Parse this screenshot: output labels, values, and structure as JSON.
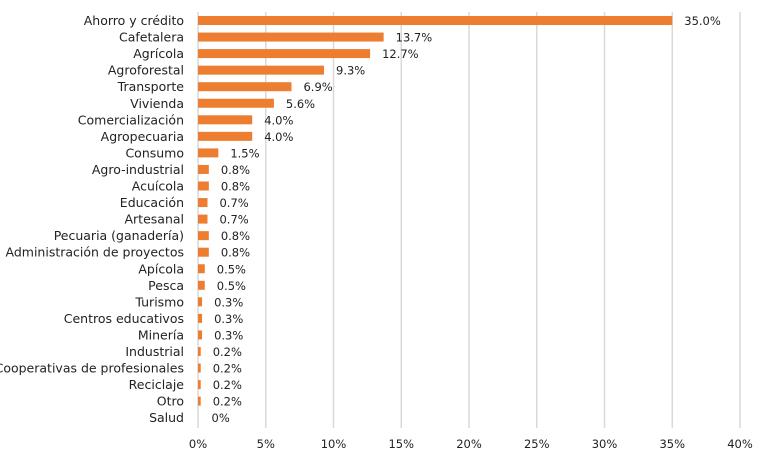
{
  "chart_data": {
    "type": "bar",
    "orientation": "horizontal",
    "title": "",
    "xlabel": "",
    "ylabel": "",
    "categories": [
      "Ahorro y crédito",
      "Cafetalera",
      "Agrícola",
      "Agroforestal",
      "Transporte",
      "Vivienda",
      "Comercialización",
      "Agropecuaria",
      "Consumo",
      "Agro-industrial",
      "Acuícola",
      "Educación",
      "Artesanal",
      "Pecuaria (ganadería)",
      "Administración de proyectos",
      "Apícola",
      "Pesca",
      "Turismo",
      "Centros educativos",
      "Minería",
      "Industrial",
      "Cooperativas de profesionales",
      "Reciclaje",
      "Otro",
      "Salud"
    ],
    "values": [
      35.0,
      13.7,
      12.7,
      9.3,
      6.9,
      5.6,
      4.0,
      4.0,
      1.5,
      0.8,
      0.8,
      0.7,
      0.7,
      0.8,
      0.8,
      0.5,
      0.5,
      0.3,
      0.3,
      0.3,
      0.2,
      0.2,
      0.2,
      0.2,
      0
    ],
    "value_labels": [
      "35.0%",
      "13.7%",
      "12.7%",
      "9.3%",
      "6.9%",
      "5.6%",
      "4.0%",
      "4.0%",
      "1.5%",
      "0.8%",
      "0.8%",
      "0.7%",
      "0.7%",
      "0.8%",
      "0.8%",
      "0.5%",
      "0.5%",
      "0.3%",
      "0.3%",
      "0.3%",
      "0.2%",
      "0.2%",
      "0.2%",
      "0.2%",
      "0%"
    ],
    "xlim": [
      0,
      40
    ],
    "x_ticks": [
      0,
      5,
      10,
      15,
      20,
      25,
      30,
      35,
      40
    ],
    "x_tick_labels": [
      "0%",
      "5%",
      "10%",
      "15%",
      "20%",
      "25%",
      "30%",
      "35%",
      "40%"
    ],
    "grid": true,
    "legend": "none",
    "colors": {
      "bar": "#ED7D31",
      "grid": "#D9D9D9",
      "text": "#222222"
    }
  }
}
